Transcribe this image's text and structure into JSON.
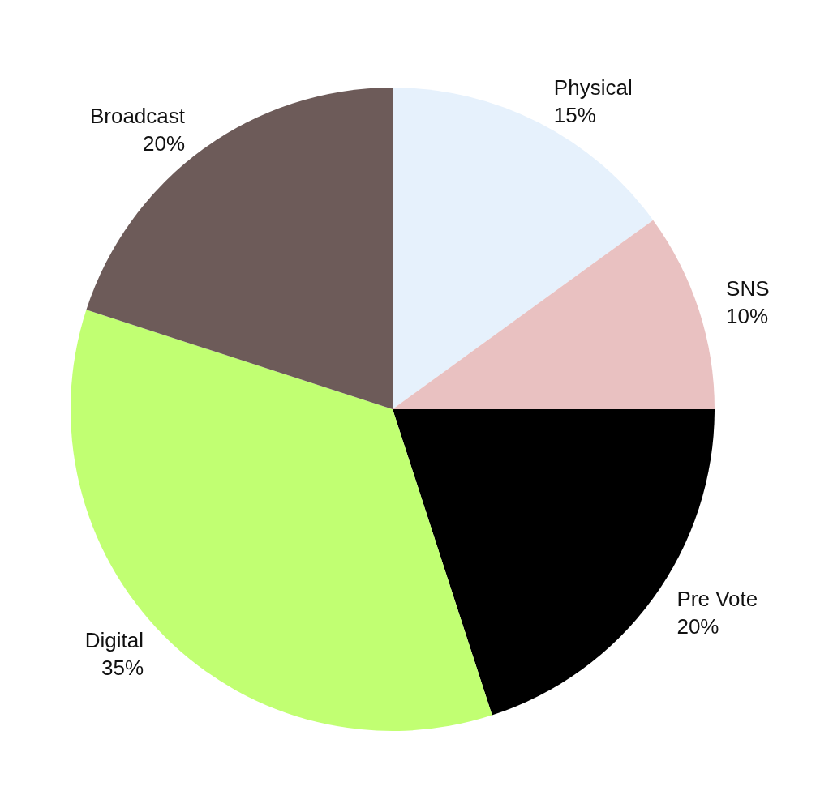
{
  "chart_data": {
    "type": "pie",
    "categories": [
      "Physical",
      "SNS",
      "Pre Vote",
      "Digital",
      "Broadcast"
    ],
    "values": [
      15,
      10,
      20,
      35,
      20
    ],
    "colors": [
      "#e6f1fc",
      "#e9c1c1",
      "#000000",
      "#c1ff72",
      "#6d5b59"
    ],
    "value_labels": [
      "15%",
      "10%",
      "20%",
      "35%",
      "20%"
    ],
    "legend": false
  }
}
